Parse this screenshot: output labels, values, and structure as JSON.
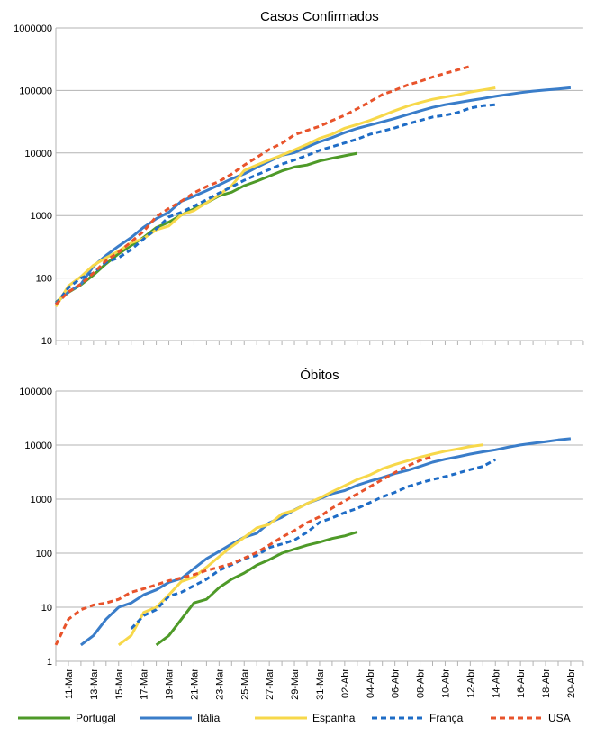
{
  "chart_data": [
    {
      "type": "line",
      "title": "Casos Confirmados",
      "yscale": "log",
      "ylim": [
        10,
        1000000
      ],
      "yticks": [
        "10",
        "100",
        "1000",
        "10000",
        "100000",
        "1000000"
      ],
      "grid": "horizontal",
      "series": [
        {
          "name": "Portugal",
          "color": "#4e9a28",
          "style": "solid",
          "start_day": 0,
          "values": [
            41,
            59,
            78,
            112,
            169,
            245,
            331,
            448,
            642,
            785,
            1020,
            1280,
            1600,
            2060,
            2362,
            2995,
            3544,
            4268,
            5170,
            5962,
            6408,
            7443,
            8251,
            9034,
            9886
          ]
        },
        {
          "name": "Itália",
          "color": "#3a7dc9",
          "style": "solid",
          "start_day": 0,
          "values": [
            40,
            60,
            80,
            155,
            230,
            325,
            445,
            650,
            890,
            1130,
            1694,
            2036,
            2502,
            3089,
            3858,
            4636,
            5883,
            7375,
            9172,
            10149,
            12462,
            15113,
            17660,
            21157,
            24747,
            27980,
            31506,
            35713,
            41035,
            47021,
            53578,
            59138,
            63927,
            69176,
            74386,
            80589,
            86498,
            92472,
            97689,
            101739,
            105792,
            110574
          ]
        },
        {
          "name": "Espanha",
          "color": "#f7d84a",
          "style": "solid",
          "start_day": 0,
          "values": [
            35,
            75,
            105,
            160,
            210,
            270,
            365,
            430,
            590,
            680,
            1024,
            1200,
            1600,
            2140,
            3000,
            5232,
            6391,
            7753,
            9191,
            11178,
            13716,
            17147,
            19980,
            24926,
            28572,
            33089,
            39673,
            47610,
            56188,
            64059,
            72248,
            78797,
            85195,
            94417,
            102136,
            110238
          ]
        },
        {
          "name": "França",
          "color": "#1e6cc6",
          "style": "dashed",
          "start_day": 0,
          "values": [
            38,
            70,
            100,
            120,
            178,
            212,
            285,
            423,
            613,
            949,
            1126,
            1412,
            1784,
            2281,
            2876,
            3661,
            4469,
            5423,
            6633,
            7730,
            9134,
            10995,
            12612,
            14459,
            16689,
            19856,
            22302,
            25233,
            29155,
            32964,
            37575,
            40174,
            44550,
            52128,
            56989,
            59105
          ]
        },
        {
          "name": "USA",
          "color": "#e8532b",
          "style": "dashed",
          "start_day": 0,
          "values": [
            38,
            60,
            80,
            120,
            190,
            260,
            380,
            560,
            960,
            1300,
            1700,
            2300,
            2900,
            3500,
            4600,
            6400,
            8500,
            11400,
            14300,
            19600,
            22900,
            26700,
            33000,
            40000,
            51000,
            66000,
            86000,
            101000,
            122000,
            140000,
            164000,
            188000,
            213000,
            243000
          ]
        }
      ]
    },
    {
      "type": "line",
      "title": "Óbitos",
      "yscale": "log",
      "ylim": [
        1,
        100000
      ],
      "yticks": [
        "1",
        "10",
        "100",
        "1000",
        "10000",
        "100000"
      ],
      "grid": "horizontal",
      "series": [
        {
          "name": "Portugal",
          "color": "#4e9a28",
          "style": "solid",
          "start_day": 8,
          "values": [
            2,
            3,
            6,
            12,
            14,
            23,
            33,
            43,
            60,
            76,
            100,
            119,
            140,
            160,
            187,
            209,
            246
          ]
        },
        {
          "name": "Itália",
          "color": "#3a7dc9",
          "style": "solid",
          "start_day": 2,
          "values": [
            2,
            3,
            6,
            10,
            12,
            17,
            21,
            29,
            34,
            52,
            79,
            107,
            148,
            197,
            233,
            366,
            463,
            631,
            827,
            1016,
            1266,
            1441,
            1809,
            2158,
            2503,
            2978,
            3405,
            4032,
            4825,
            5476,
            6077,
            6820,
            7503,
            8165,
            9134,
            10023,
            10779,
            11591,
            12428,
            13155
          ]
        },
        {
          "name": "Espanha",
          "color": "#f7d84a",
          "style": "solid",
          "start_day": 5,
          "values": [
            2,
            3,
            8,
            10,
            17,
            30,
            36,
            55,
            86,
            133,
            196,
            294,
            342,
            533,
            623,
            830,
            1043,
            1375,
            1772,
            2311,
            2808,
            3647,
            4365,
            5138,
            5982,
            6803,
            7716,
            8464,
            9387,
            10096
          ]
        },
        {
          "name": "França",
          "color": "#1e6cc6",
          "style": "dashed",
          "start_day": 6,
          "values": [
            4,
            7,
            9,
            16,
            19,
            25,
            33,
            48,
            61,
            79,
            91,
            127,
            148,
            175,
            244,
            372,
            450,
            562,
            674,
            860,
            1100,
            1331,
            1696,
            1995,
            2314,
            2606,
            3024,
            3523,
            4032,
            5387
          ]
        },
        {
          "name": "USA",
          "color": "#e8532b",
          "style": "dashed",
          "start_day": 0,
          "values": [
            2,
            6,
            9,
            11,
            12,
            14,
            19,
            22,
            26,
            31,
            35,
            40,
            48,
            55,
            64,
            81,
            103,
            141,
            197,
            263,
            366,
            472,
            684,
            926,
            1250,
            1700,
            2300,
            3100,
            4100,
            5200,
            6100
          ]
        }
      ]
    }
  ],
  "xaxis": {
    "tick_labels": [
      "11-Mar",
      "13-Mar",
      "15-Mar",
      "17-Mar",
      "19-Mar",
      "21-Mar",
      "23-Mar",
      "25-Mar",
      "27-Mar",
      "29-Mar",
      "31-Mar",
      "02-Abr",
      "04-Abr",
      "06-Abr",
      "08-Abr",
      "10-Abr",
      "12-Abr",
      "14-Abr",
      "16-Abr",
      "18-Abr",
      "20-Abr"
    ]
  },
  "legend": {
    "position": "bottom",
    "items": [
      {
        "label": "Portugal",
        "color": "#4e9a28",
        "style": "solid"
      },
      {
        "label": "Itália",
        "color": "#3a7dc9",
        "style": "solid"
      },
      {
        "label": "Espanha",
        "color": "#f7d84a",
        "style": "solid"
      },
      {
        "label": "França",
        "color": "#1e6cc6",
        "style": "dashed"
      },
      {
        "label": "USA",
        "color": "#e8532b",
        "style": "dashed"
      }
    ]
  }
}
